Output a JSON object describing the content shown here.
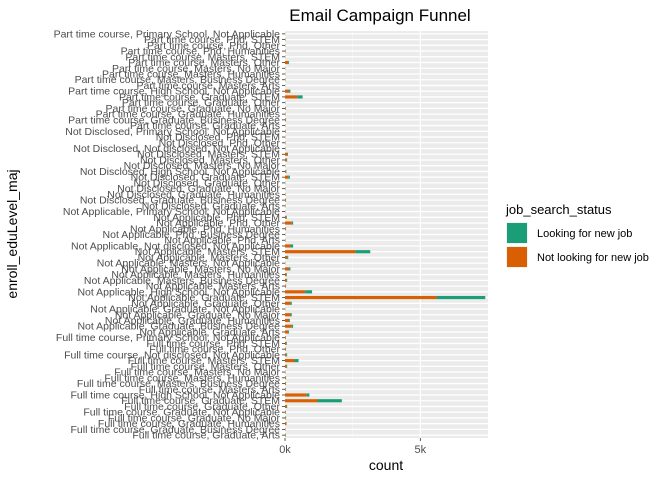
{
  "chart_data": {
    "type": "bar",
    "orientation": "horizontal",
    "stacked": true,
    "title": "Email Campaign Funnel",
    "xlabel": "count",
    "ylabel": "enroll_eduLevel_maj",
    "xlim": [
      0,
      7500
    ],
    "x_ticks": [
      0,
      5000
    ],
    "x_tick_labels": [
      "0k",
      "5k"
    ],
    "grid": true,
    "legend": {
      "title": "job_search_status",
      "position": "right"
    },
    "categories": [
      "Part time course, Primary School, Not Applicable",
      "Part time course, Phd, STEM",
      "Part time course, Phd, Other",
      "Part time course, Phd, Humanities",
      "Part time course, Masters, STEM",
      "Part time course, Masters, Other",
      "Part time course, Masters, No Major",
      "Part time course, Masters, Humanities",
      "Part time course, Masters, Business Degree",
      "Part time course, Masters, Arts",
      "Part time course, High School, Not Applicable",
      "Part time course, Graduate, STEM",
      "Part time course, Graduate, Other",
      "Part time course, Graduate, No Major",
      "Part time course, Graduate, Humanities",
      "Part time course, Graduate, Business Degree",
      "Part time course, Graduate, Arts",
      "Not Disclosed, Primary School, Not Applicable",
      "Not Disclosed, Phd, STEM",
      "Not Disclosed, Phd, Other",
      "Not Disclosed, Not disclosed, Not Applicable",
      "Not Disclosed, Masters, STEM",
      "Not Disclosed, Masters, Other",
      "Not Disclosed, Masters, No Major",
      "Not Disclosed, High School, Not Applicable",
      "Not Disclosed, Graduate, STEM",
      "Not Disclosed, Graduate, Other",
      "Not Disclosed, Graduate, No Major",
      "Not Disclosed, Graduate, Humanities",
      "Not Disclosed, Graduate, Business Degree",
      "Not Disclosed, Graduate, Arts",
      "Not Applicable, Primary School, Not Applicable",
      "Not Applicable, Phd, STEM",
      "Not Applicable, Phd, Other",
      "Not Applicable, Phd, Humanities",
      "Not Applicable, Phd, Business Degree",
      "Not Applicable, Phd, Arts",
      "Not Applicable, Not disclosed, Not Applicable",
      "Not Applicable, Masters, STEM",
      "Not Applicable, Masters, Other",
      "Not Applicable, Masters, Not Applicable",
      "Not Applicable, Masters, No Major",
      "Not Applicable, Masters, Humanities",
      "Not Applicable, Masters, Business Degree",
      "Not Applicable, Masters, Arts",
      "Not Applicable, High School, Not Applicable",
      "Not Applicable, Graduate, STEM",
      "Not Applicable, Graduate, Other",
      "Not Applicable, Graduate, Not Applicable",
      "Not Applicable, Graduate, No Major",
      "Not Applicable, Graduate, Humanities",
      "Not Applicable, Graduate, Business Degree",
      "Not Applicable, Graduate, Arts",
      "Full time course, Primary School, Not Applicable",
      "Full time course, Phd, STEM",
      "Full time course, Phd, Other",
      "Full time course, Not disclosed, Not Applicable",
      "Full time course, Masters, STEM",
      "Full time course, Masters, Other",
      "Full time course, Masters, No Major",
      "Full time course, Masters, Humanities",
      "Full time course, Masters, Business Degree",
      "Full time course, Masters, Arts",
      "Full time course, High School, Not Applicable",
      "Full time course, Graduate, STEM",
      "Full time course, Graduate, Other",
      "Full time course, Graduate, Not Applicable",
      "Full time course, Graduate, No Major",
      "Full time course, Graduate, Humanities",
      "Full time course, Graduate, Business Degree",
      "Full time course, Graduate, Arts"
    ],
    "series": [
      {
        "name": "Not looking for new job",
        "color": "#D95F02",
        "values": [
          5,
          15,
          10,
          20,
          10,
          120,
          10,
          10,
          15,
          5,
          150,
          450,
          10,
          20,
          15,
          30,
          10,
          20,
          10,
          15,
          15,
          90,
          60,
          10,
          30,
          120,
          10,
          15,
          15,
          30,
          15,
          10,
          50,
          250,
          30,
          10,
          15,
          200,
          2600,
          80,
          10,
          150,
          50,
          60,
          30,
          750,
          5600,
          200,
          10,
          200,
          150,
          250,
          120,
          20,
          50,
          30,
          50,
          350,
          60,
          15,
          30,
          30,
          20,
          800,
          1200,
          60,
          20,
          30,
          50,
          15,
          20
        ]
      },
      {
        "name": "Looking for new job",
        "color": "#1B9E77",
        "values": [
          5,
          5,
          5,
          5,
          5,
          30,
          5,
          5,
          5,
          5,
          50,
          200,
          5,
          10,
          5,
          10,
          5,
          5,
          5,
          5,
          5,
          20,
          20,
          5,
          20,
          60,
          5,
          5,
          5,
          10,
          5,
          5,
          20,
          50,
          10,
          5,
          5,
          100,
          550,
          40,
          5,
          50,
          20,
          20,
          10,
          250,
          1800,
          50,
          5,
          50,
          30,
          50,
          30,
          10,
          20,
          10,
          30,
          150,
          20,
          5,
          10,
          10,
          10,
          100,
          900,
          20,
          10,
          10,
          10,
          5,
          10
        ]
      }
    ]
  }
}
